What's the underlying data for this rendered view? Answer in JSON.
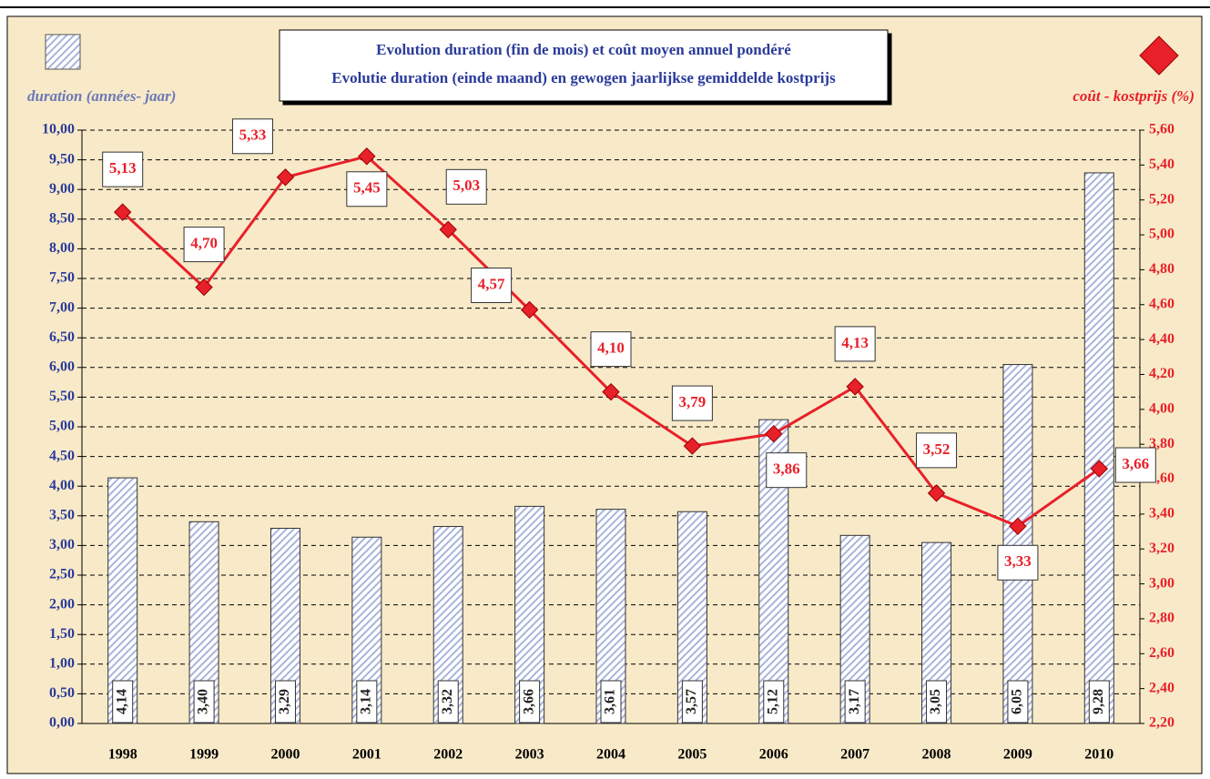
{
  "chart_data": {
    "type": "bar-line",
    "title": "Evolution duration (fin de mois) et coût moyen annuel pondéré",
    "subtitle": "Evolutie duration (einde maand) en gewogen jaarlijkse gemiddelde kostprijs",
    "categories": [
      "1998",
      "1999",
      "2000",
      "2001",
      "2002",
      "2003",
      "2004",
      "2005",
      "2006",
      "2007",
      "2008",
      "2009",
      "2010"
    ],
    "series": [
      {
        "name": "duration (années- jaar)",
        "type": "bar",
        "color": "#a9b4dc",
        "values": [
          4.14,
          3.4,
          3.29,
          3.14,
          3.32,
          3.66,
          3.61,
          3.57,
          5.12,
          3.17,
          3.05,
          6.05,
          9.28
        ],
        "value_labels": [
          "4,14",
          "3,40",
          "3,29",
          "3,14",
          "3,32",
          "3,66",
          "3,61",
          "3,57",
          "5,12",
          "3,17",
          "3,05",
          "6,05",
          "9,28"
        ]
      },
      {
        "name": "coût - kostprijs (%)",
        "type": "line",
        "axis": "y2",
        "color": "#e8202a",
        "values": [
          5.13,
          4.7,
          5.33,
          5.45,
          5.03,
          4.57,
          4.1,
          3.79,
          3.86,
          4.13,
          3.52,
          3.33,
          3.66
        ],
        "value_labels": [
          "5,13",
          "4,70",
          "5,33",
          "5,45",
          "5,03",
          "4,57",
          "4,10",
          "3,79",
          "3,86",
          "4,13",
          "3,52",
          "3,33",
          "3,66"
        ]
      }
    ],
    "ylim": [
      0,
      10
    ],
    "yticks": [
      {
        "value": 0,
        "label": "0,00"
      },
      {
        "value": 0.5,
        "label": "0,50"
      },
      {
        "value": 1,
        "label": "1,00"
      },
      {
        "value": 1.5,
        "label": "1,50"
      },
      {
        "value": 2,
        "label": "2,00"
      },
      {
        "value": 2.5,
        "label": "2,50"
      },
      {
        "value": 3,
        "label": "3,00"
      },
      {
        "value": 3.5,
        "label": "3,50"
      },
      {
        "value": 4,
        "label": "4,00"
      },
      {
        "value": 4.5,
        "label": "4,50"
      },
      {
        "value": 5,
        "label": "5,00"
      },
      {
        "value": 5.5,
        "label": "5,50"
      },
      {
        "value": 6,
        "label": "6,00"
      },
      {
        "value": 6.5,
        "label": "6,50"
      },
      {
        "value": 7,
        "label": "7,00"
      },
      {
        "value": 7.5,
        "label": "7,50"
      },
      {
        "value": 8,
        "label": "8,00"
      },
      {
        "value": 8.5,
        "label": "8,50"
      },
      {
        "value": 9,
        "label": "9,00"
      },
      {
        "value": 9.5,
        "label": "9,50"
      },
      {
        "value": 10,
        "label": "10,00"
      }
    ],
    "y2lim": [
      2.2,
      5.6
    ],
    "y2ticks": [
      {
        "value": 2.2,
        "label": "2,20"
      },
      {
        "value": 2.4,
        "label": "2,40"
      },
      {
        "value": 2.6,
        "label": "2,60"
      },
      {
        "value": 2.8,
        "label": "2,80"
      },
      {
        "value": 3.0,
        "label": "3,00"
      },
      {
        "value": 3.2,
        "label": "3,20"
      },
      {
        "value": 3.4,
        "label": "3,40"
      },
      {
        "value": 3.6,
        "label": "3,60"
      },
      {
        "value": 3.8,
        "label": "3,80"
      },
      {
        "value": 4.0,
        "label": "4,00"
      },
      {
        "value": 4.2,
        "label": "4,20"
      },
      {
        "value": 4.4,
        "label": "4,40"
      },
      {
        "value": 4.6,
        "label": "4,60"
      },
      {
        "value": 4.8,
        "label": "4,80"
      },
      {
        "value": 5.0,
        "label": "5,00"
      },
      {
        "value": 5.2,
        "label": "5,20"
      },
      {
        "value": 5.4,
        "label": "5,40"
      },
      {
        "value": 5.6,
        "label": "5,60"
      }
    ],
    "grid": true
  }
}
